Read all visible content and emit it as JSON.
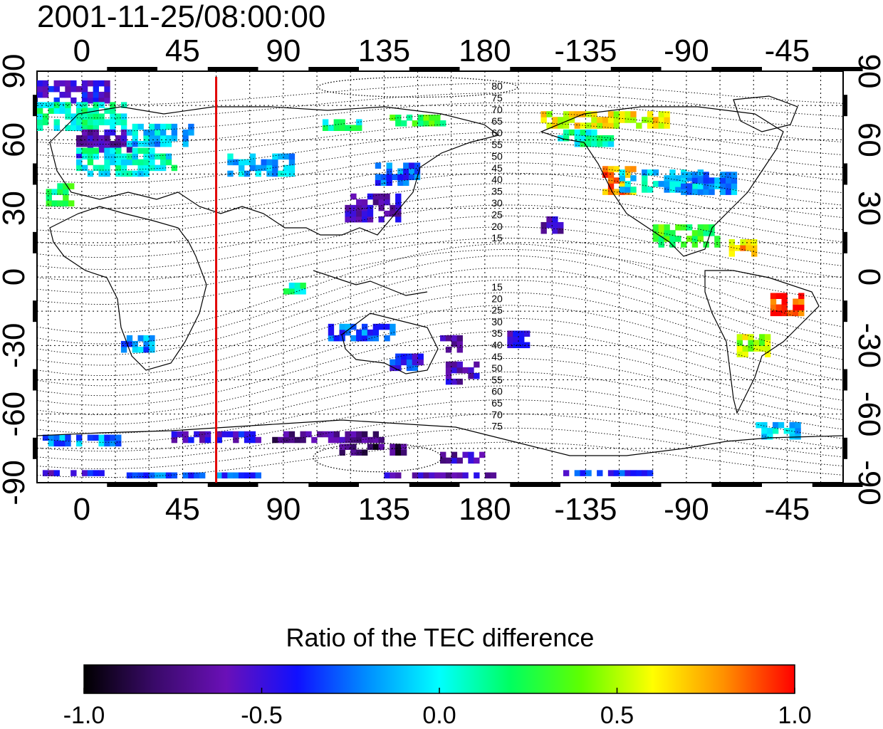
{
  "title": "2001-11-25/08:00:00",
  "top_lon_ticks": [
    "0",
    "45",
    "90",
    "135",
    "180",
    "-135",
    "-90",
    "-45"
  ],
  "bottom_lon_ticks": [
    "0",
    "45",
    "90",
    "135",
    "180",
    "-135",
    "-90",
    "-45"
  ],
  "left_lat_ticks": [
    "90",
    "60",
    "30",
    "0",
    "-30",
    "-60",
    "-90"
  ],
  "right_lat_ticks": [
    "90",
    "60",
    "30",
    "0",
    "-30",
    "-60",
    "-90"
  ],
  "contour_labels_north": [
    "80",
    "75",
    "70",
    "65",
    "60",
    "55",
    "50",
    "45",
    "40",
    "35",
    "30",
    "25",
    "20",
    "15"
  ],
  "contour_labels_south": [
    "15",
    "20",
    "25",
    "30",
    "35",
    "40",
    "45",
    "50",
    "55",
    "60",
    "65",
    "70",
    "75"
  ],
  "marker_line": {
    "lon": 60,
    "color": "#e00000"
  },
  "colorbar": {
    "title": "Ratio of the TEC difference",
    "min": -1.0,
    "max": 1.0,
    "tick_labels": [
      "-1.0",
      "-0.5",
      "0.0",
      "0.5",
      "1.0"
    ],
    "tick_values": [
      -1.0,
      -0.5,
      0.0,
      0.5,
      1.0
    ],
    "colors": [
      "#000000",
      "#3a0a6a",
      "#6a10b8",
      "#1010ff",
      "#0090ff",
      "#00ffff",
      "#00ff60",
      "#60ff00",
      "#ffff00",
      "#ff9000",
      "#ff0000"
    ]
  },
  "map": {
    "lon_range": [
      -20,
      340
    ],
    "lat_range": [
      -90,
      90
    ],
    "grid_lon_step": 15,
    "grid_lat_step": 15,
    "value_patches": [
      {
        "lon": -5,
        "lat": 80,
        "w": 35,
        "h": 8,
        "v": -0.5
      },
      {
        "lon": 0,
        "lat": 70,
        "w": 40,
        "h": 12,
        "v": 0.1
      },
      {
        "lon": 10,
        "lat": 58,
        "w": 25,
        "h": 12,
        "v": -0.6
      },
      {
        "lon": 20,
        "lat": 50,
        "w": 45,
        "h": 12,
        "v": 0.05
      },
      {
        "lon": 35,
        "lat": 62,
        "w": 30,
        "h": 10,
        "v": -0.1
      },
      {
        "lon": -10,
        "lat": 35,
        "w": 12,
        "h": 8,
        "v": 0.2
      },
      {
        "lon": 80,
        "lat": 48,
        "w": 30,
        "h": 8,
        "v": -0.1
      },
      {
        "lon": 130,
        "lat": 30,
        "w": 25,
        "h": 12,
        "v": -0.6
      },
      {
        "lon": 140,
        "lat": 45,
        "w": 18,
        "h": 10,
        "v": -0.3
      },
      {
        "lon": 115,
        "lat": 66,
        "w": 20,
        "h": 4,
        "v": 0.1
      },
      {
        "lon": 150,
        "lat": 68,
        "w": 25,
        "h": 4,
        "v": 0.3
      },
      {
        "lon": 210,
        "lat": 22,
        "w": 10,
        "h": 6,
        "v": -0.6
      },
      {
        "lon": 235,
        "lat": 68,
        "w": 60,
        "h": 6,
        "v": 0.6
      },
      {
        "lon": 225,
        "lat": 60,
        "w": 25,
        "h": 6,
        "v": 0.1
      },
      {
        "lon": 240,
        "lat": 42,
        "w": 15,
        "h": 12,
        "v": 0.8
      },
      {
        "lon": 260,
        "lat": 42,
        "w": 40,
        "h": 10,
        "v": -0.05
      },
      {
        "lon": 280,
        "lat": 40,
        "w": 25,
        "h": 8,
        "v": -0.2
      },
      {
        "lon": 270,
        "lat": 18,
        "w": 30,
        "h": 10,
        "v": 0.3
      },
      {
        "lon": 295,
        "lat": 12,
        "w": 12,
        "h": 6,
        "v": 0.7
      },
      {
        "lon": 315,
        "lat": -12,
        "w": 15,
        "h": 10,
        "v": 0.95
      },
      {
        "lon": 300,
        "lat": -30,
        "w": 15,
        "h": 10,
        "v": 0.5
      },
      {
        "lon": 25,
        "lat": -30,
        "w": 15,
        "h": 6,
        "v": -0.2
      },
      {
        "lon": 95,
        "lat": -5,
        "w": 10,
        "h": 5,
        "v": 0.1
      },
      {
        "lon": 125,
        "lat": -25,
        "w": 30,
        "h": 6,
        "v": -0.3
      },
      {
        "lon": 145,
        "lat": -38,
        "w": 15,
        "h": 6,
        "v": -0.4
      },
      {
        "lon": 165,
        "lat": -30,
        "w": 10,
        "h": 6,
        "v": -0.6
      },
      {
        "lon": 170,
        "lat": -42,
        "w": 15,
        "h": 10,
        "v": -0.6
      },
      {
        "lon": 195,
        "lat": -28,
        "w": 10,
        "h": 6,
        "v": -0.5
      },
      {
        "lon": 0,
        "lat": -72,
        "w": 35,
        "h": 4,
        "v": -0.2
      },
      {
        "lon": 60,
        "lat": -70,
        "w": 40,
        "h": 5,
        "v": -0.5
      },
      {
        "lon": 110,
        "lat": -70,
        "w": 50,
        "h": 5,
        "v": -0.7
      },
      {
        "lon": 130,
        "lat": -76,
        "w": 30,
        "h": 4,
        "v": -0.8
      },
      {
        "lon": 170,
        "lat": -80,
        "w": 20,
        "h": 3,
        "v": -0.6
      },
      {
        "lon": 310,
        "lat": -68,
        "w": 18,
        "h": 6,
        "v": -0.1
      },
      {
        "lon": -10,
        "lat": -86,
        "w": 40,
        "h": 2,
        "v": -0.5
      },
      {
        "lon": 50,
        "lat": -87,
        "w": 60,
        "h": 2,
        "v": -0.3
      },
      {
        "lon": 160,
        "lat": -87,
        "w": 50,
        "h": 2,
        "v": -0.6
      },
      {
        "lon": 235,
        "lat": -86,
        "w": 40,
        "h": 2,
        "v": -0.4
      }
    ]
  }
}
